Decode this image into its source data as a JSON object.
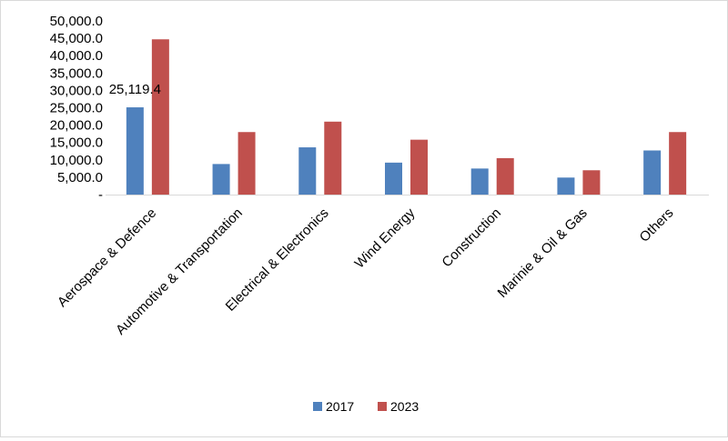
{
  "chart_data": {
    "type": "bar",
    "title": "",
    "xlabel": "",
    "ylabel": "",
    "ylim": [
      0,
      50000
    ],
    "yticks": [
      "-",
      "5,000.0",
      "10,000.0",
      "15,000.0",
      "20,000.0",
      "25,000.0",
      "30,000.0",
      "35,000.0",
      "40,000.0",
      "45,000.0",
      "50,000.0"
    ],
    "ytick_values": [
      0,
      5000,
      10000,
      15000,
      20000,
      25000,
      30000,
      35000,
      40000,
      45000,
      50000
    ],
    "categories": [
      "Aerospace & Defence",
      "Automotive & Transportation",
      "Electrical & Electronics",
      "Wind Energy",
      "Construction",
      "Marinie & Oil & Gas",
      "Others"
    ],
    "series": [
      {
        "name": "2017",
        "color": "#4f81bd",
        "values": [
          25119.4,
          8800,
          13600,
          9200,
          7500,
          4900,
          12700
        ]
      },
      {
        "name": "2023",
        "color": "#c0504d",
        "values": [
          44700,
          18000,
          21000,
          15800,
          10500,
          7000,
          18000
        ]
      }
    ],
    "data_labels": [
      {
        "series": 0,
        "index": 0,
        "text": "25,119.4"
      }
    ],
    "grid": false,
    "legend": "bottom"
  }
}
